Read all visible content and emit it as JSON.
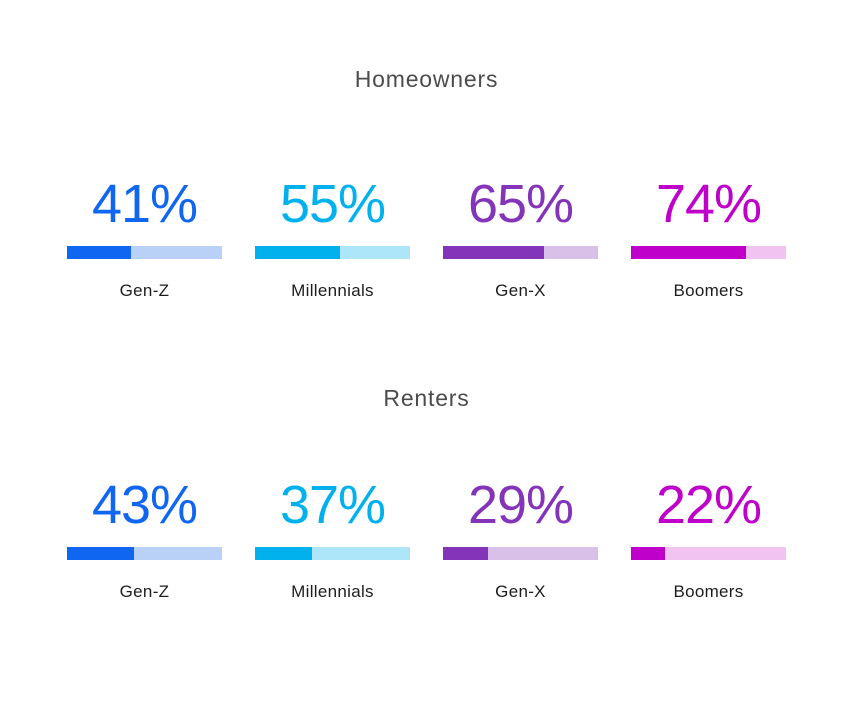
{
  "chart_data": {
    "type": "bar",
    "categories": [
      "Gen-Z",
      "Millennials",
      "Gen-X",
      "Boomers"
    ],
    "series": [
      {
        "name": "Homeowners",
        "values": [
          41,
          55,
          65,
          74
        ]
      },
      {
        "name": "Renters",
        "values": [
          43,
          37,
          29,
          22
        ]
      }
    ],
    "unit": "%",
    "value_range": [
      0,
      100
    ],
    "layout": "two stacked groups of four stat cards; each card shows a large colored percentage above a horizontal progress bar with a category label below",
    "grid": false,
    "legend": false
  },
  "colors": {
    "background": "#ffffff",
    "section_title": "#4c4c4c",
    "category_label": "#1d1d1d",
    "gen_z_accent": "#0f66f0",
    "gen_z_track": "#b9d1f6",
    "millennials_accent": "#00b1ee",
    "millennials_track": "#aee6f9",
    "gen_x_accent": "#8434b8",
    "gen_x_track": "#d9c0e9",
    "boomers_accent": "#bf00cb",
    "boomers_track": "#f1c3f0"
  },
  "sections": [
    {
      "title": "Homeowners",
      "items": [
        {
          "label": "Gen-Z",
          "value": 41,
          "value_text": "41%",
          "color": "#0f66f0",
          "track_color": "#b9d1f6"
        },
        {
          "label": "Millennials",
          "value": 55,
          "value_text": "55%",
          "color": "#00b1ee",
          "track_color": "#aee6f9"
        },
        {
          "label": "Gen-X",
          "value": 65,
          "value_text": "65%",
          "color": "#8434b8",
          "track_color": "#d9c0e9"
        },
        {
          "label": "Boomers",
          "value": 74,
          "value_text": "74%",
          "color": "#bf00cb",
          "track_color": "#f1c3f0"
        }
      ]
    },
    {
      "title": "Renters",
      "items": [
        {
          "label": "Gen-Z",
          "value": 43,
          "value_text": "43%",
          "color": "#0f66f0",
          "track_color": "#b9d1f6"
        },
        {
          "label": "Millennials",
          "value": 37,
          "value_text": "37%",
          "color": "#00b1ee",
          "track_color": "#aee6f9"
        },
        {
          "label": "Gen-X",
          "value": 29,
          "value_text": "29%",
          "color": "#8434b8",
          "track_color": "#d9c0e9"
        },
        {
          "label": "Boomers",
          "value": 22,
          "value_text": "22%",
          "color": "#bf00cb",
          "track_color": "#f1c3f0"
        }
      ]
    }
  ]
}
